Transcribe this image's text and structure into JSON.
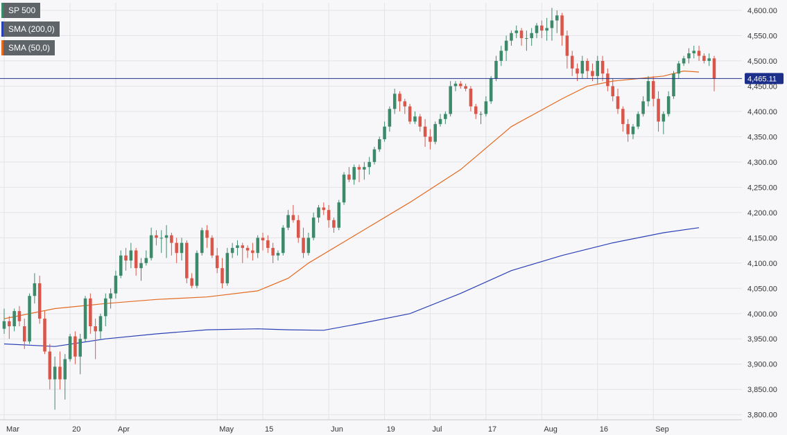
{
  "chart_data": {
    "type": "candlestick",
    "title": "SP 500",
    "ylim": [
      3790,
      4615
    ],
    "y_ticks": [
      3800,
      3850,
      3900,
      3950,
      4000,
      4050,
      4100,
      4150,
      4200,
      4250,
      4300,
      4350,
      4400,
      4450,
      4500,
      4550,
      4600
    ],
    "y_tick_labels": [
      "3,800.00",
      "3,850.00",
      "3,900.00",
      "3,950.00",
      "4,000.00",
      "4,050.00",
      "4,100.00",
      "4,150.00",
      "4,200.00",
      "4,250.00",
      "4,300.00",
      "4,350.00",
      "4,400.00",
      "4,450.00",
      "4,500.00",
      "4,550.00",
      "4,600.00"
    ],
    "x_ticks": [
      {
        "label": "Mar",
        "index": 0
      },
      {
        "label": "20",
        "index": 13
      },
      {
        "label": "Apr",
        "index": 22
      },
      {
        "label": "May",
        "index": 42
      },
      {
        "label": "15",
        "index": 51
      },
      {
        "label": "Jun",
        "index": 64
      },
      {
        "label": "19",
        "index": 75
      },
      {
        "label": "Jul",
        "index": 84
      },
      {
        "label": "17",
        "index": 95
      },
      {
        "label": "Aug",
        "index": 106
      },
      {
        "label": "16",
        "index": 117
      },
      {
        "label": "Sep",
        "index": 128
      }
    ],
    "current_price": 4465.11,
    "current_price_label": "4,465.11",
    "grid": true,
    "series": [
      {
        "name": "SP 500",
        "kind": "candles",
        "bull_color": "#3d8a6b",
        "bear_color": "#d9574a",
        "candles": [
          [
            3970,
            4010,
            3960,
            3985
          ],
          [
            3985,
            3995,
            3950,
            3975
          ],
          [
            3975,
            4010,
            3965,
            4005
          ],
          [
            4005,
            4015,
            3975,
            3985
          ],
          [
            3975,
            3990,
            3930,
            3945
          ],
          [
            3945,
            4040,
            3940,
            4035
          ],
          [
            4035,
            4080,
            4020,
            4060
          ],
          [
            4060,
            4075,
            3980,
            3990
          ],
          [
            3990,
            4005,
            3920,
            3925
          ],
          [
            3925,
            3940,
            3850,
            3870
          ],
          [
            3870,
            3915,
            3810,
            3895
          ],
          [
            3895,
            3925,
            3850,
            3870
          ],
          [
            3870,
            3920,
            3830,
            3910
          ],
          [
            3910,
            3960,
            3905,
            3955
          ],
          [
            3955,
            3965,
            3900,
            3915
          ],
          [
            3915,
            3960,
            3880,
            3950
          ],
          [
            3950,
            4035,
            3945,
            4030
          ],
          [
            4030,
            4040,
            3960,
            3975
          ],
          [
            3975,
            3990,
            3910,
            3965
          ],
          [
            3965,
            4000,
            3950,
            3995
          ],
          [
            3995,
            4040,
            3975,
            4030
          ],
          [
            4030,
            4050,
            4010,
            4040
          ],
          [
            4040,
            4085,
            4030,
            4075
          ],
          [
            4075,
            4125,
            4070,
            4115
          ],
          [
            4115,
            4130,
            4085,
            4105
          ],
          [
            4105,
            4140,
            4090,
            4125
          ],
          [
            4125,
            4130,
            4075,
            4090
          ],
          [
            4090,
            4110,
            4065,
            4100
          ],
          [
            4100,
            4125,
            4095,
            4110
          ],
          [
            4110,
            4170,
            4105,
            4155
          ],
          [
            4155,
            4165,
            4135,
            4150
          ],
          [
            4150,
            4165,
            4120,
            4150
          ],
          [
            4150,
            4175,
            4110,
            4155
          ],
          [
            4155,
            4160,
            4115,
            4140
          ],
          [
            4140,
            4150,
            4100,
            4120
          ],
          [
            4120,
            4150,
            4105,
            4140
          ],
          [
            4140,
            4145,
            4060,
            4070
          ],
          [
            4070,
            4080,
            4050,
            4055
          ],
          [
            4055,
            4125,
            4050,
            4120
          ],
          [
            4120,
            4170,
            4115,
            4165
          ],
          [
            4165,
            4175,
            4130,
            4150
          ],
          [
            4150,
            4155,
            4110,
            4115
          ],
          [
            4115,
            4130,
            4080,
            4090
          ],
          [
            4090,
            4110,
            4050,
            4060
          ],
          [
            4060,
            4130,
            4055,
            4120
          ],
          [
            4120,
            4140,
            4110,
            4130
          ],
          [
            4130,
            4145,
            4115,
            4135
          ],
          [
            4135,
            4140,
            4100,
            4130
          ],
          [
            4130,
            4135,
            4110,
            4125
          ],
          [
            4125,
            4140,
            4105,
            4120
          ],
          [
            4120,
            4155,
            4110,
            4150
          ],
          [
            4150,
            4160,
            4125,
            4145
          ],
          [
            4145,
            4155,
            4120,
            4130
          ],
          [
            4130,
            4140,
            4100,
            4115
          ],
          [
            4115,
            4125,
            4105,
            4120
          ],
          [
            4120,
            4175,
            4115,
            4170
          ],
          [
            4170,
            4205,
            4165,
            4195
          ],
          [
            4195,
            4215,
            4180,
            4185
          ],
          [
            4185,
            4195,
            4140,
            4150
          ],
          [
            4150,
            4170,
            4110,
            4120
          ],
          [
            4120,
            4160,
            4115,
            4150
          ],
          [
            4150,
            4200,
            4145,
            4190
          ],
          [
            4190,
            4215,
            4180,
            4210
          ],
          [
            4210,
            4220,
            4195,
            4205
          ],
          [
            4205,
            4215,
            4170,
            4185
          ],
          [
            4185,
            4190,
            4160,
            4170
          ],
          [
            4170,
            4225,
            4165,
            4220
          ],
          [
            4220,
            4280,
            4215,
            4275
          ],
          [
            4275,
            4290,
            4260,
            4265
          ],
          [
            4265,
            4295,
            4255,
            4290
          ],
          [
            4290,
            4295,
            4260,
            4285
          ],
          [
            4285,
            4300,
            4265,
            4290
          ],
          [
            4290,
            4310,
            4275,
            4300
          ],
          [
            4300,
            4330,
            4295,
            4325
          ],
          [
            4325,
            4350,
            4320,
            4345
          ],
          [
            4345,
            4380,
            4340,
            4370
          ],
          [
            4370,
            4410,
            4360,
            4405
          ],
          [
            4405,
            4445,
            4395,
            4435
          ],
          [
            4435,
            4440,
            4400,
            4420
          ],
          [
            4420,
            4425,
            4395,
            4410
          ],
          [
            4410,
            4415,
            4375,
            4380
          ],
          [
            4380,
            4400,
            4375,
            4390
          ],
          [
            4390,
            4395,
            4360,
            4370
          ],
          [
            4370,
            4385,
            4330,
            4350
          ],
          [
            4350,
            4365,
            4325,
            4340
          ],
          [
            4340,
            4380,
            4335,
            4375
          ],
          [
            4375,
            4395,
            4370,
            4385
          ],
          [
            4385,
            4400,
            4375,
            4395
          ],
          [
            4395,
            4460,
            4390,
            4450
          ],
          [
            4450,
            4460,
            4440,
            4455
          ],
          [
            4455,
            4460,
            4445,
            4450
          ],
          [
            4450,
            4455,
            4440,
            4445
          ],
          [
            4445,
            4450,
            4400,
            4410
          ],
          [
            4410,
            4415,
            4385,
            4395
          ],
          [
            4395,
            4400,
            4375,
            4395
          ],
          [
            4395,
            4430,
            4390,
            4420
          ],
          [
            4420,
            4470,
            4415,
            4465
          ],
          [
            4465,
            4510,
            4460,
            4500
          ],
          [
            4500,
            4530,
            4490,
            4520
          ],
          [
            4520,
            4550,
            4500,
            4540
          ],
          [
            4540,
            4560,
            4530,
            4555
          ],
          [
            4555,
            4570,
            4545,
            4560
          ],
          [
            4560,
            4565,
            4530,
            4545
          ],
          [
            4545,
            4560,
            4520,
            4545
          ],
          [
            4545,
            4565,
            4530,
            4555
          ],
          [
            4555,
            4575,
            4545,
            4570
          ],
          [
            4570,
            4580,
            4545,
            4560
          ],
          [
            4560,
            4585,
            4540,
            4565
          ],
          [
            4565,
            4605,
            4540,
            4580
          ],
          [
            4580,
            4600,
            4555,
            4590
          ],
          [
            4590,
            4595,
            4530,
            4550
          ],
          [
            4550,
            4560,
            4485,
            4510
          ],
          [
            4510,
            4520,
            4470,
            4485
          ],
          [
            4485,
            4495,
            4460,
            4475
          ],
          [
            4475,
            4510,
            4465,
            4500
          ],
          [
            4500,
            4505,
            4465,
            4480
          ],
          [
            4480,
            4495,
            4460,
            4470
          ],
          [
            4470,
            4510,
            4455,
            4500
          ],
          [
            4500,
            4510,
            4460,
            4475
          ],
          [
            4475,
            4485,
            4440,
            4450
          ],
          [
            4450,
            4465,
            4420,
            4430
          ],
          [
            4430,
            4445,
            4395,
            4405
          ],
          [
            4405,
            4410,
            4360,
            4375
          ],
          [
            4375,
            4385,
            4340,
            4355
          ],
          [
            4355,
            4375,
            4345,
            4370
          ],
          [
            4370,
            4400,
            4365,
            4395
          ],
          [
            4395,
            4430,
            4390,
            4420
          ],
          [
            4420,
            4470,
            4410,
            4460
          ],
          [
            4460,
            4470,
            4410,
            4425
          ],
          [
            4425,
            4440,
            4360,
            4380
          ],
          [
            4380,
            4400,
            4355,
            4395
          ],
          [
            4395,
            4440,
            4390,
            4430
          ],
          [
            4430,
            4480,
            4425,
            4475
          ],
          [
            4475,
            4500,
            4465,
            4495
          ],
          [
            4495,
            4510,
            4490,
            4505
          ],
          [
            4505,
            4525,
            4495,
            4515
          ],
          [
            4515,
            4530,
            4505,
            4520
          ],
          [
            4520,
            4530,
            4500,
            4510
          ],
          [
            4510,
            4515,
            4495,
            4500
          ],
          [
            4500,
            4515,
            4490,
            4505
          ],
          [
            4505,
            4510,
            4440,
            4465
          ]
        ]
      },
      {
        "name": "SMA (200,0)",
        "kind": "line",
        "color": "#2a3fb5",
        "points": [
          [
            0,
            3940
          ],
          [
            10,
            3935
          ],
          [
            20,
            3950
          ],
          [
            30,
            3960
          ],
          [
            40,
            3968
          ],
          [
            50,
            3970
          ],
          [
            56,
            3968
          ],
          [
            63,
            3967
          ],
          [
            70,
            3980
          ],
          [
            80,
            4000
          ],
          [
            90,
            4040
          ],
          [
            100,
            4085
          ],
          [
            110,
            4115
          ],
          [
            120,
            4140
          ],
          [
            130,
            4160
          ],
          [
            137,
            4170
          ]
        ]
      },
      {
        "name": "SMA (50,0)",
        "kind": "line",
        "color": "#e46a20",
        "points": [
          [
            0,
            3990
          ],
          [
            10,
            4010
          ],
          [
            20,
            4020
          ],
          [
            30,
            4028
          ],
          [
            40,
            4033
          ],
          [
            50,
            4045
          ],
          [
            56,
            4070
          ],
          [
            60,
            4100
          ],
          [
            70,
            4160
          ],
          [
            80,
            4220
          ],
          [
            90,
            4285
          ],
          [
            100,
            4370
          ],
          [
            110,
            4425
          ],
          [
            115,
            4450
          ],
          [
            120,
            4460
          ],
          [
            125,
            4465
          ],
          [
            130,
            4470
          ],
          [
            134,
            4480
          ],
          [
            137,
            4478
          ]
        ]
      }
    ]
  },
  "legend": [
    {
      "key": "main",
      "label": "SP 500",
      "color": "#3d8a6b"
    },
    {
      "key": "sma200",
      "label": "SMA (200,0)",
      "color": "#2a3fb5"
    },
    {
      "key": "sma50",
      "label": "SMA (50,0)",
      "color": "#e46a20"
    }
  ]
}
